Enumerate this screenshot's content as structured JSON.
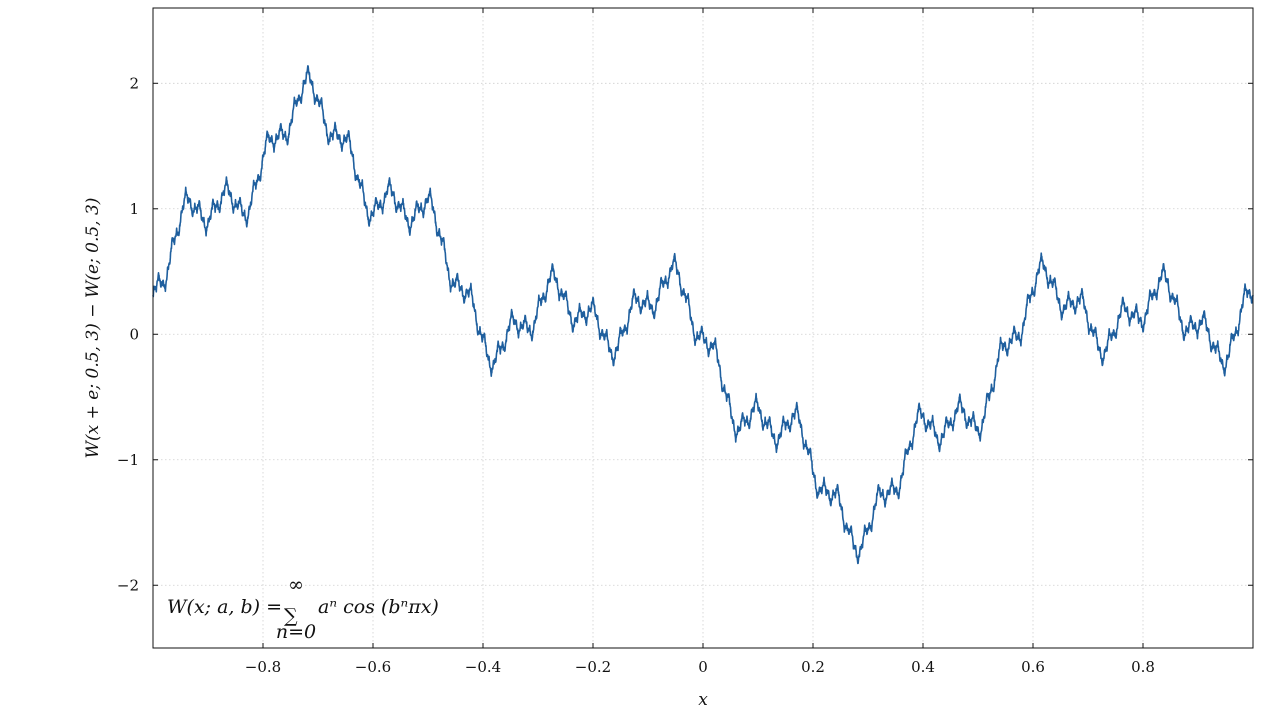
{
  "chart_data": {
    "type": "line",
    "title": "",
    "xlabel": "x",
    "ylabel": "W(x + e; 0.5, 3) − W(e; 0.5, 3)",
    "xlim": [
      -1,
      1
    ],
    "ylim": [
      -2.5,
      2.6
    ],
    "xticks": [
      -0.8,
      -0.6,
      -0.4,
      -0.2,
      0,
      0.2,
      0.4,
      0.6,
      0.8
    ],
    "yticks": [
      -2,
      -1,
      0,
      1,
      2
    ],
    "xtick_labels": [
      "−0.8",
      "−0.6",
      "−0.4",
      "−0.2",
      "0",
      "0.2",
      "0.4",
      "0.6",
      "0.8"
    ],
    "ytick_labels": [
      "−2",
      "−1",
      "0",
      "1",
      "2"
    ],
    "grid": true,
    "line_color": "#1f5f9e",
    "function": {
      "a": 0.5,
      "b": 3,
      "offset": "e",
      "description": "W(x + e; 0.5, 3) − W(e; 0.5, 3)"
    },
    "annotation": {
      "lhs": "W(x; a, b) =",
      "sum": "∑",
      "sum_upper": "∞",
      "sum_lower": "n=0",
      "rhs": "aⁿ cos (bⁿπx)"
    },
    "series": [
      {
        "values_note": "",
        "x_samples": [
          -1.0,
          -0.9,
          -0.8,
          -0.72,
          -0.6,
          -0.5,
          -0.4,
          -0.3,
          -0.2,
          -0.1,
          -0.05,
          0.0,
          0.1,
          0.2,
          0.28,
          0.3,
          0.4,
          0.5,
          0.6,
          0.7,
          0.8,
          0.9,
          1.0
        ],
        "y_samples": [
          0.4,
          1.1,
          1.2,
          2.1,
          1.0,
          1.1,
          -0.3,
          0.4,
          0.25,
          0.3,
          0.6,
          0.0,
          -0.8,
          -0.6,
          -1.8,
          -1.5,
          -0.8,
          -0.7,
          0.6,
          0.2,
          0.5,
          0.2,
          0.35
        ]
      }
    ]
  }
}
